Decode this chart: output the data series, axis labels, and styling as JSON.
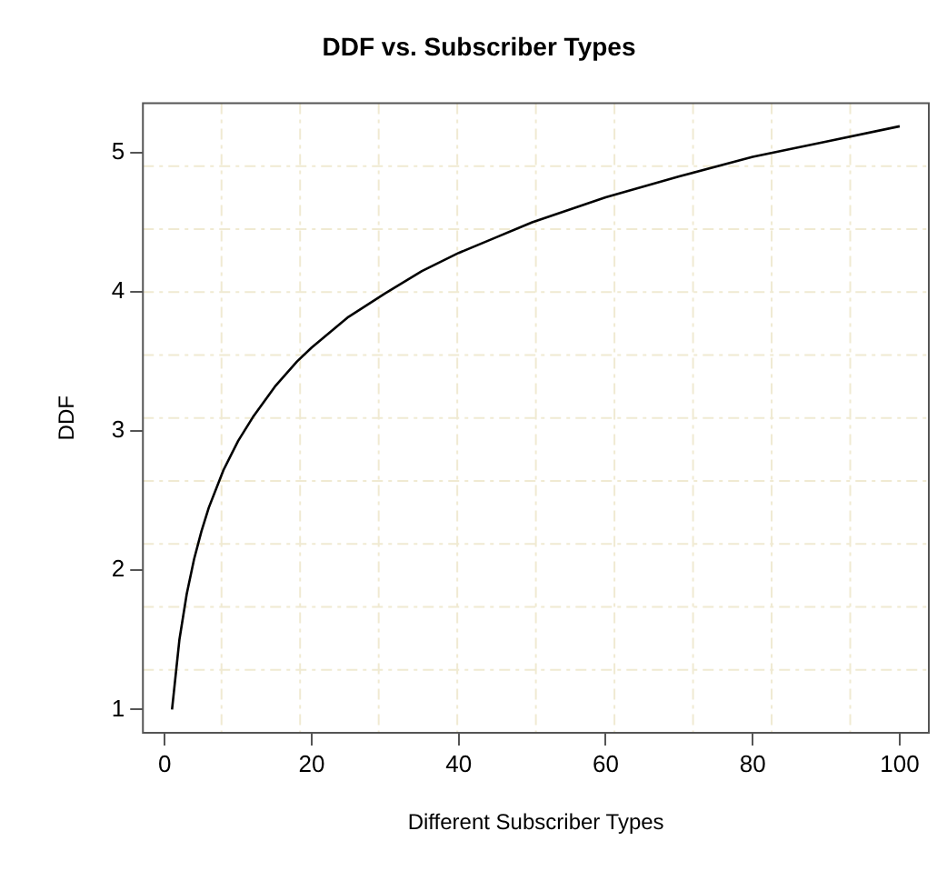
{
  "chart_data": {
    "type": "line",
    "title": "DDF vs. Subscriber Types",
    "xlabel": "Different Subscriber Types",
    "ylabel": "DDF",
    "x": [
      1,
      2,
      3,
      4,
      5,
      6,
      8,
      10,
      12,
      15,
      18,
      20,
      25,
      30,
      35,
      40,
      45,
      50,
      60,
      70,
      80,
      90,
      100
    ],
    "series": [
      {
        "color": "#000000",
        "values": [
          1,
          1.5,
          1.83,
          2.08,
          2.28,
          2.45,
          2.72,
          2.93,
          3.1,
          3.32,
          3.5,
          3.6,
          3.82,
          3.99,
          4.15,
          4.28,
          4.39,
          4.5,
          4.68,
          4.83,
          4.97,
          5.08,
          5.19
        ]
      }
    ],
    "xlim": [
      -2.96,
      103.96
    ],
    "xticks": [
      0,
      20,
      40,
      60,
      80,
      100
    ],
    "ylim": [
      0.8325,
      5.355
    ],
    "yticks": [
      1,
      2,
      3,
      4,
      5
    ],
    "grid": true,
    "marker": "none",
    "line_style": "solid"
  }
}
